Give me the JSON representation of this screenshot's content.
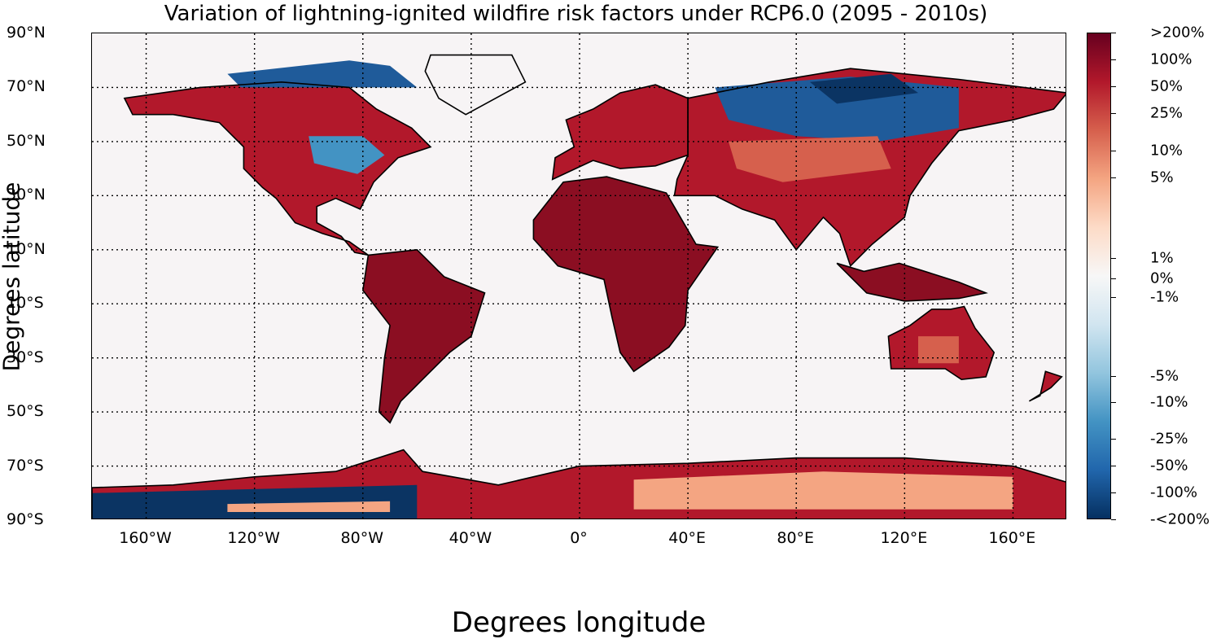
{
  "title": "Variation of lightning-ignited wildfire risk factors under RCP6.0 (2095 - 2010s)",
  "xlabel": "Degrees longitude",
  "ylabel": "Degrees latitude",
  "lat_ticks": [
    "90°N",
    "70°N",
    "50°N",
    "30°N",
    "10°N",
    "10°S",
    "30°S",
    "50°S",
    "70°S",
    "90°S"
  ],
  "lon_ticks": [
    "160°W",
    "120°W",
    "80°W",
    "40°W",
    "0°",
    "40°E",
    "80°E",
    "120°E",
    "160°E"
  ],
  "colorbar": {
    "labels": [
      ">200%",
      "100%",
      "50%",
      "25%",
      "10%",
      "5%",
      "1%",
      "0%",
      "-1%",
      "-5%",
      "-10%",
      "-25%",
      "-50%",
      "-100%",
      "-<200%"
    ],
    "colors": [
      "#67001f",
      "#b2182b",
      "#d6604d",
      "#f4a582",
      "#fddbc7",
      "#f7f7f7",
      "#d1e5f0",
      "#92c5de",
      "#4393c3",
      "#2166ac",
      "#053061"
    ]
  },
  "map_colors": {
    "background": "#f7f4f5",
    "strong_increase": "#8b0e22",
    "increase": "#b2182b",
    "moderate_increase": "#d6604d",
    "slight_increase": "#f4a582",
    "decrease": "#4393c3",
    "strong_decrease": "#1f5b9a",
    "very_strong_decrease": "#0b3463"
  }
}
